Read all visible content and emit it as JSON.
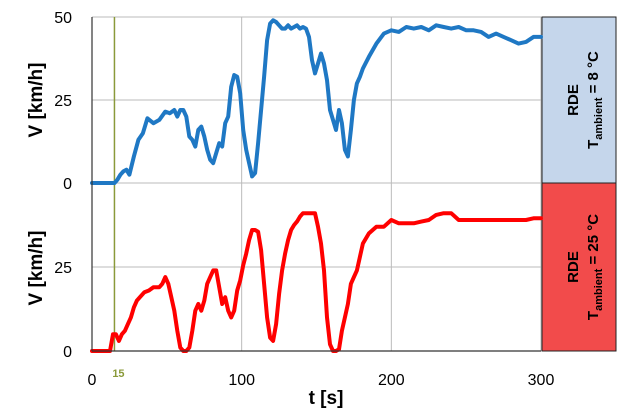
{
  "chart_data": [
    {
      "type": "line",
      "panel": "top",
      "ylabel": "V [km/h]",
      "ylim": [
        0,
        50
      ],
      "yticks": [
        "0",
        "25",
        "50"
      ],
      "xlim": [
        0,
        300
      ],
      "grid": true,
      "side_label": {
        "main": "RDE",
        "sub_prefix": "T",
        "sub_script": "ambient",
        "sub_suffix": " = 8 °C"
      },
      "side_color": "#c5d6eb",
      "series": [
        {
          "color": "#1f78c4",
          "x": [
            0,
            6,
            12,
            15,
            17,
            19,
            21,
            23,
            25,
            28,
            31,
            34,
            37,
            41,
            45,
            49,
            52,
            55,
            57,
            59,
            61,
            63,
            65,
            67,
            69,
            71,
            73,
            75,
            77,
            79,
            81,
            83,
            85,
            87,
            89,
            91,
            93,
            95,
            97,
            99,
            101,
            103,
            105,
            107,
            109,
            111,
            113,
            115,
            117,
            119,
            121,
            123,
            125,
            127,
            129,
            131,
            133,
            135,
            137,
            139,
            141,
            143,
            145,
            147,
            149,
            151,
            153,
            155,
            157,
            159,
            161,
            163,
            165,
            167,
            169,
            171,
            173,
            175,
            177,
            179,
            181,
            185,
            190,
            195,
            200,
            205,
            210,
            215,
            220,
            225,
            230,
            235,
            240,
            245,
            250,
            255,
            260,
            265,
            270,
            275,
            280,
            285,
            290,
            295,
            300
          ],
          "values": [
            0,
            0,
            0,
            0,
            1,
            2.5,
            3.5,
            4,
            2.5,
            8,
            13,
            15,
            19.5,
            18,
            19,
            21.5,
            21,
            22,
            20,
            22,
            22,
            20,
            14,
            13,
            11,
            16,
            17,
            14,
            10,
            7,
            6,
            9,
            12,
            11,
            18,
            20,
            29,
            32.5,
            32,
            27,
            16,
            10,
            6,
            2,
            3,
            12,
            22,
            32,
            43,
            48,
            49,
            48.5,
            47.5,
            46.5,
            46.5,
            47.5,
            46.5,
            47,
            47.5,
            46.5,
            47,
            46.5,
            44,
            37,
            33,
            36,
            39,
            36,
            31,
            22,
            19,
            16,
            22,
            18,
            10,
            8,
            16,
            25,
            30,
            32,
            34.5,
            38,
            42,
            45,
            46,
            45.5,
            47,
            46.5,
            47,
            46,
            47.5,
            47,
            46.5,
            47,
            46,
            46,
            45.5,
            44,
            45,
            44,
            43,
            42,
            42.5,
            44,
            44
          ]
        }
      ]
    },
    {
      "type": "line",
      "panel": "bottom",
      "ylabel": "V [km/h]",
      "ylim": [
        0,
        50
      ],
      "yticks": [
        "0",
        "25"
      ],
      "xlim": [
        0,
        300
      ],
      "xticks": [
        "0",
        "100",
        "200",
        "300"
      ],
      "xlabel": "t [s]",
      "marker_label": "15",
      "marker_x": 15,
      "grid": true,
      "side_label": {
        "main": "RDE",
        "sub_prefix": "T",
        "sub_script": "ambient",
        "sub_suffix": " = 25 °C"
      },
      "side_color": "#f24b4b",
      "series": [
        {
          "color": "#ff0000",
          "x": [
            0,
            5,
            10,
            12,
            14,
            16,
            18,
            20,
            22,
            24,
            26,
            28,
            30,
            32,
            35,
            38,
            41,
            45,
            47,
            49,
            51,
            53,
            55,
            57,
            59,
            61,
            63,
            65,
            67,
            69,
            71,
            73,
            75,
            77,
            79,
            81,
            83,
            85,
            87,
            89,
            91,
            93,
            95,
            97,
            99,
            101,
            103,
            105,
            107,
            109,
            111,
            113,
            115,
            117,
            119,
            121,
            123,
            125,
            127,
            129,
            131,
            133,
            135,
            137,
            139,
            141,
            143,
            145,
            147,
            149,
            151,
            153,
            155,
            157,
            159,
            161,
            163,
            165,
            167,
            169,
            171,
            173,
            175,
            177,
            179,
            181,
            185,
            190,
            195,
            200,
            205,
            210,
            215,
            220,
            225,
            230,
            235,
            240,
            245,
            250,
            255,
            260,
            265,
            270,
            275,
            280,
            285,
            290,
            295,
            300
          ],
          "values": [
            0,
            0,
            0,
            0,
            5,
            5,
            3,
            5,
            6,
            8,
            10,
            13,
            15,
            16,
            17.5,
            18,
            19,
            19,
            20,
            22,
            20,
            16,
            12,
            6,
            1,
            0,
            0,
            1,
            6,
            12,
            14,
            12,
            15,
            20,
            22,
            24,
            24,
            19,
            14,
            16,
            12,
            10,
            12,
            18,
            21,
            25.5,
            29,
            33,
            36,
            36,
            35.5,
            30,
            20,
            10,
            4,
            3,
            8,
            17,
            24,
            29,
            33,
            36,
            37.5,
            38.5,
            40,
            41,
            41,
            41,
            41,
            41,
            37,
            32,
            24,
            10,
            2,
            0,
            0,
            0.5,
            6,
            10,
            14,
            20,
            22,
            24,
            28,
            32,
            35,
            37,
            37,
            39,
            38,
            38,
            38,
            38.5,
            39,
            40.5,
            41,
            41,
            39,
            39,
            39,
            39,
            39,
            39,
            39,
            39,
            39,
            39,
            39.5,
            39.5
          ]
        }
      ]
    }
  ]
}
